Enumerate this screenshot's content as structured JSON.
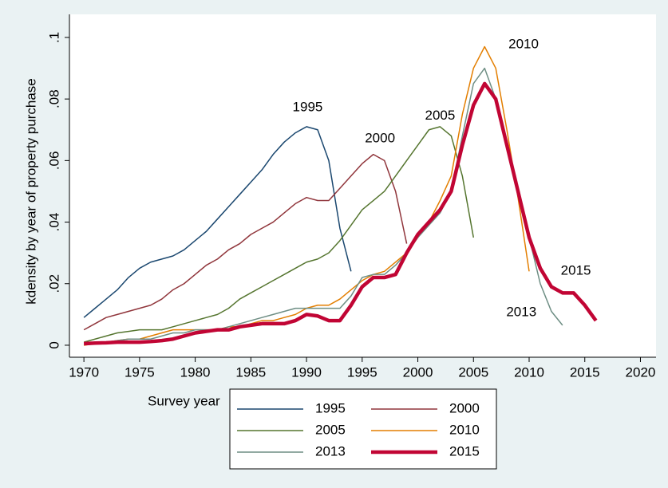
{
  "chart_data": {
    "type": "line",
    "x_label": "Survey year",
    "y_label": "kdensity by year of property purchase",
    "x": [
      1970,
      1971,
      1972,
      1973,
      1974,
      1975,
      1976,
      1977,
      1978,
      1979,
      1980,
      1981,
      1982,
      1983,
      1984,
      1985,
      1986,
      1987,
      1988,
      1989,
      1990,
      1991,
      1992,
      1993,
      1994,
      1995,
      1996,
      1997,
      1998,
      1999,
      2000,
      2001,
      2002,
      2003,
      2004,
      2005,
      2006,
      2007,
      2008,
      2009,
      2010,
      2011,
      2012,
      2013,
      2014,
      2015,
      2016
    ],
    "series": [
      {
        "name": "1995",
        "color": "#1a476f",
        "values": [
          0.009,
          0.012,
          0.015,
          0.018,
          0.022,
          0.025,
          0.027,
          0.028,
          0.029,
          0.031,
          0.034,
          0.037,
          0.041,
          0.045,
          0.049,
          0.053,
          0.057,
          0.062,
          0.066,
          0.069,
          0.071,
          0.07,
          0.06,
          0.038,
          0.024,
          null,
          null,
          null,
          null,
          null,
          null,
          null,
          null,
          null,
          null,
          null,
          null,
          null,
          null,
          null,
          null,
          null,
          null,
          null,
          null,
          null,
          null
        ]
      },
      {
        "name": "2000",
        "color": "#90353b",
        "values": [
          0.005,
          0.007,
          0.009,
          0.01,
          0.011,
          0.012,
          0.013,
          0.015,
          0.018,
          0.02,
          0.023,
          0.026,
          0.028,
          0.031,
          0.033,
          0.036,
          0.038,
          0.04,
          0.043,
          0.046,
          0.048,
          0.047,
          0.047,
          0.051,
          0.055,
          0.059,
          0.062,
          0.06,
          0.05,
          0.033,
          null,
          null,
          null,
          null,
          null,
          null,
          null,
          null,
          null,
          null,
          null,
          null,
          null,
          null,
          null,
          null,
          null
        ]
      },
      {
        "name": "2005",
        "color": "#55752f",
        "values": [
          0.001,
          0.002,
          0.003,
          0.004,
          0.0045,
          0.005,
          0.005,
          0.005,
          0.006,
          0.007,
          0.008,
          0.009,
          0.01,
          0.012,
          0.015,
          0.017,
          0.019,
          0.021,
          0.023,
          0.025,
          0.027,
          0.028,
          0.03,
          0.034,
          0.039,
          0.044,
          0.047,
          0.05,
          0.055,
          0.06,
          0.065,
          0.07,
          0.071,
          0.068,
          0.055,
          0.035,
          null,
          null,
          null,
          null,
          null,
          null,
          null,
          null,
          null,
          null,
          null
        ]
      },
      {
        "name": "2010",
        "color": "#e37e00",
        "values": [
          0,
          0.0005,
          0.001,
          0.0015,
          0.002,
          0.002,
          0.003,
          0.004,
          0.005,
          0.005,
          0.005,
          0.005,
          0.005,
          0.006,
          0.006,
          0.007,
          0.008,
          0.008,
          0.009,
          0.01,
          0.012,
          0.013,
          0.013,
          0.015,
          0.018,
          0.021,
          0.023,
          0.024,
          0.027,
          0.03,
          0.035,
          0.04,
          0.047,
          0.055,
          0.075,
          0.09,
          0.097,
          0.09,
          0.07,
          0.048,
          0.024,
          null,
          null,
          null,
          null,
          null,
          null
        ]
      },
      {
        "name": "2013",
        "color": "#6e8e84",
        "values": [
          0.0005,
          0.001,
          0.001,
          0.0015,
          0.002,
          0.002,
          0.002,
          0.003,
          0.004,
          0.004,
          0.005,
          0.005,
          0.005,
          0.006,
          0.007,
          0.008,
          0.009,
          0.01,
          0.011,
          0.012,
          0.012,
          0.012,
          0.012,
          0.012,
          0.016,
          0.022,
          0.023,
          0.023,
          0.026,
          0.03,
          0.035,
          0.039,
          0.043,
          0.05,
          0.068,
          0.085,
          0.09,
          0.08,
          0.065,
          0.05,
          0.035,
          0.02,
          0.011,
          0.0065,
          null,
          null,
          null
        ]
      },
      {
        "name": "2015",
        "color": "#c10534",
        "values": [
          0.0005,
          0.0007,
          0.0008,
          0.001,
          0.001,
          0.001,
          0.0012,
          0.0015,
          0.002,
          0.003,
          0.004,
          0.0045,
          0.005,
          0.005,
          0.006,
          0.0065,
          0.007,
          0.007,
          0.007,
          0.008,
          0.01,
          0.0095,
          0.008,
          0.008,
          0.013,
          0.019,
          0.022,
          0.022,
          0.023,
          0.03,
          0.036,
          0.04,
          0.044,
          0.05,
          0.065,
          0.078,
          0.085,
          0.08,
          0.065,
          0.05,
          0.035,
          0.025,
          0.019,
          0.017,
          0.017,
          0.013,
          0.008
        ]
      }
    ],
    "annotations": [
      {
        "text": "1995",
        "x": 1990.1,
        "y": 0.0772
      },
      {
        "text": "2000",
        "x": 1996.6,
        "y": 0.0671
      },
      {
        "text": "2005",
        "x": 2002,
        "y": 0.0744
      },
      {
        "text": "2010",
        "x": 2009.5,
        "y": 0.0977
      },
      {
        "text": "2015",
        "x": 2014.2,
        "y": 0.0241
      },
      {
        "text": "2013",
        "x": 2009.3,
        "y": 0.0106
      }
    ],
    "xlim": [
      1968.7,
      2021.4
    ],
    "ylim": [
      -0.0039,
      0.1075
    ],
    "xticks": [
      1970,
      1975,
      1980,
      1985,
      1990,
      1995,
      2000,
      2005,
      2010,
      2015,
      2020
    ],
    "yticks": [
      0,
      {
        "value": 0.02,
        "label": ".02"
      },
      {
        "value": 0.04,
        "label": ".04"
      },
      {
        "value": 0.06,
        "label": ".06"
      },
      {
        "value": 0.08,
        "label": ".08"
      },
      {
        "value": 0.1,
        "label": ".1"
      }
    ],
    "grid": false
  }
}
